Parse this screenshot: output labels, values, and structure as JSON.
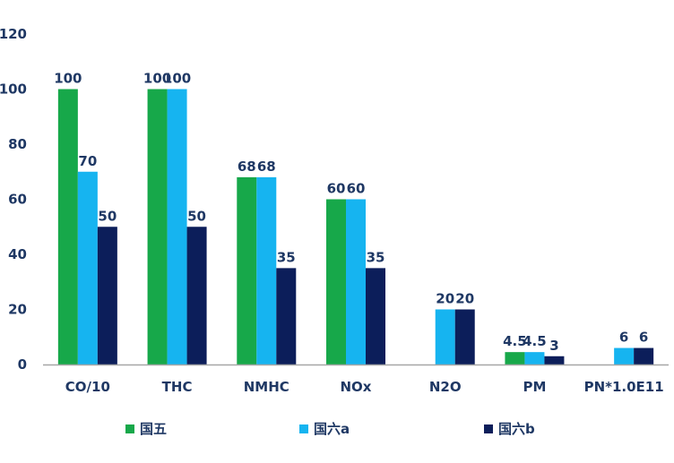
{
  "chart_data": {
    "type": "bar",
    "categories": [
      "CO/10",
      "THC",
      "NMHC",
      "NOx",
      "N2O",
      "PM",
      "PN*1.0E11"
    ],
    "series": [
      {
        "name": "国五",
        "color": "#17a84a",
        "values": [
          100,
          100,
          68,
          60,
          null,
          4.5,
          null
        ],
        "labels": [
          "100",
          "100",
          "68",
          "60",
          "",
          "4.5",
          ""
        ]
      },
      {
        "name": "国六a",
        "color": "#16b4f0",
        "values": [
          70,
          100,
          68,
          60,
          20,
          4.5,
          6
        ],
        "labels": [
          "70",
          "100",
          "68",
          "60",
          "20",
          "4.5",
          "6"
        ]
      },
      {
        "name": "国六b",
        "color": "#0c1e5a",
        "values": [
          50,
          50,
          35,
          35,
          20,
          3,
          6
        ],
        "labels": [
          "50",
          "50",
          "35",
          "35",
          "20",
          "3",
          "6"
        ]
      }
    ],
    "yticks": [
      "0",
      "20",
      "40",
      "60",
      "80",
      "100",
      "120"
    ],
    "ylim": [
      0,
      120
    ],
    "grid": false,
    "legend": "bottom"
  }
}
